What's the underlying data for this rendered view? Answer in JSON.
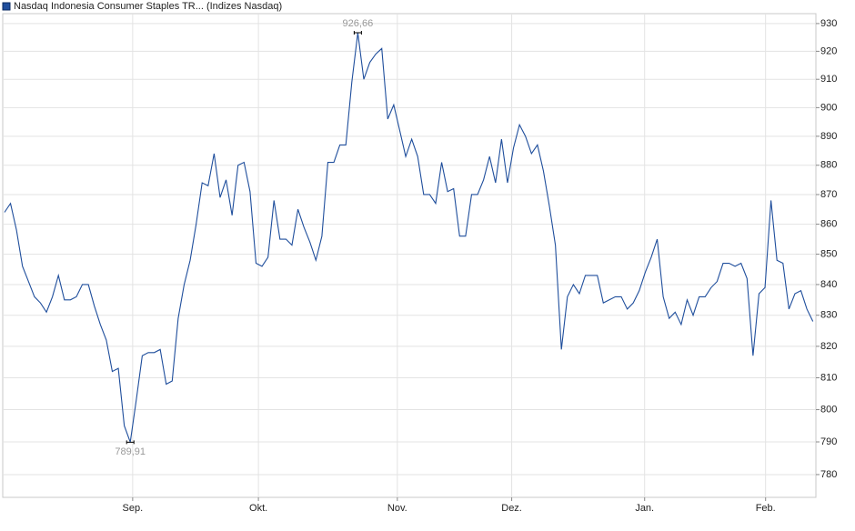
{
  "chart_data": {
    "type": "line",
    "series": [
      {
        "name": "Nasdaq Indonesia Consumer Staples TR... (Indizes Nasdaq)",
        "color": "#1f4e9c",
        "values": [
          864,
          867,
          858,
          846,
          841,
          836,
          834,
          831,
          836,
          843,
          835,
          835,
          836,
          840,
          840,
          833,
          827,
          822,
          812,
          813,
          795,
          789.91,
          803,
          817,
          818,
          818,
          819,
          808,
          809,
          829,
          840,
          848,
          860,
          874,
          873,
          884,
          869,
          875,
          863,
          880,
          881,
          871,
          847,
          846,
          849,
          868,
          855,
          855,
          853,
          865,
          859,
          854,
          848,
          856,
          881,
          881,
          887,
          887,
          909,
          926.66,
          910,
          916,
          919,
          921,
          896,
          901,
          892,
          883,
          889,
          883,
          870,
          870,
          867,
          881,
          871,
          872,
          856,
          856,
          870,
          870,
          875,
          883,
          874,
          889,
          874,
          886,
          894,
          890,
          884,
          887,
          878,
          866,
          853,
          819,
          836,
          840,
          837,
          843,
          843,
          843,
          834,
          835,
          836,
          836,
          832,
          834,
          838,
          844,
          849,
          855,
          836,
          829,
          831,
          827,
          835,
          830,
          836,
          836,
          839,
          841,
          847,
          847,
          846,
          847,
          842,
          817,
          837,
          839,
          868,
          848,
          847,
          832,
          837,
          838,
          832,
          828
        ],
        "value_labels": [
          null,
          null,
          null,
          null,
          null,
          null,
          null,
          null,
          null,
          null,
          null,
          null,
          null,
          null,
          null,
          null,
          null,
          null,
          null,
          null,
          null,
          "789,91",
          null,
          null,
          null,
          null,
          null,
          null,
          null,
          null,
          null,
          null,
          null,
          null,
          null,
          null,
          null,
          null,
          null,
          null,
          null,
          null,
          null,
          null,
          null,
          null,
          null,
          null,
          null,
          null,
          null,
          null,
          null,
          null,
          null,
          null,
          null,
          null,
          null,
          "926,66",
          null,
          null,
          null,
          null,
          null,
          null,
          null,
          null,
          null,
          null,
          null,
          null,
          null,
          null,
          null,
          null,
          null,
          null,
          null,
          null,
          null,
          null,
          null,
          null,
          null,
          null,
          null,
          null,
          null,
          null,
          null,
          null,
          null,
          null,
          null,
          null,
          null,
          null,
          null,
          null,
          null,
          null,
          null,
          null,
          null,
          null,
          null,
          null,
          null,
          null,
          null,
          null,
          null,
          null,
          null,
          null,
          null,
          null,
          null,
          null,
          null,
          null,
          null,
          null,
          null,
          null,
          null,
          null,
          null,
          null,
          null,
          null,
          null,
          null,
          null,
          null
        ]
      }
    ],
    "xlim": [
      -0.3,
      135.5
    ],
    "xticks": [
      {
        "value": 21.4,
        "label": "Sep."
      },
      {
        "value": 42.4,
        "label": "Okt."
      },
      {
        "value": 65.6,
        "label": "Nov."
      },
      {
        "value": 84.7,
        "label": "Dez."
      },
      {
        "value": 106.9,
        "label": "Jan."
      },
      {
        "value": 127.1,
        "label": "Feb."
      }
    ],
    "ylim": [
      773.1,
      933.6
    ],
    "yticks": [
      780,
      790,
      800,
      810,
      820,
      830,
      840,
      850,
      860,
      870,
      880,
      890,
      900,
      910,
      920,
      930
    ],
    "log_y": true,
    "grid": true
  }
}
